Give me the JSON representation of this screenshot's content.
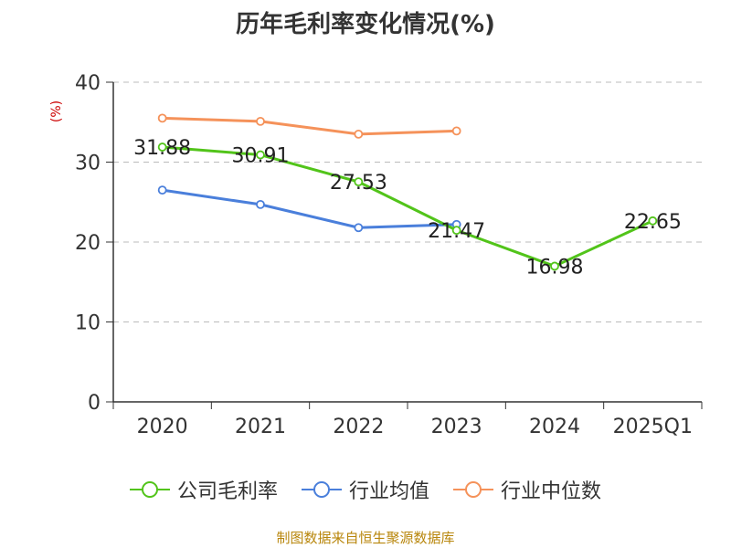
{
  "chart_data": {
    "type": "line",
    "title": "历年毛利率变化情况(%)",
    "ylabel": "(%)",
    "xlabel": "",
    "ylim": [
      0,
      40
    ],
    "yticks": [
      0,
      10,
      20,
      30,
      40
    ],
    "grid": true,
    "categories": [
      "2020",
      "2021",
      "2022",
      "2023",
      "2024",
      "2025Q1"
    ],
    "series": [
      {
        "name": "公司毛利率",
        "color": "#52c41a",
        "values": [
          31.88,
          30.91,
          27.53,
          21.47,
          16.98,
          22.65
        ],
        "labels": [
          "31.88",
          "30.91",
          "27.53",
          "21.47",
          "16.98",
          "22.65"
        ]
      },
      {
        "name": "行业均值",
        "color": "#4a7fdb",
        "values": [
          26.5,
          24.7,
          21.8,
          22.2,
          null,
          null
        ]
      },
      {
        "name": "行业中位数",
        "color": "#f5925a",
        "values": [
          35.5,
          35.1,
          33.5,
          33.9,
          null,
          null
        ]
      }
    ],
    "legend_position": "bottom",
    "source": "制图数据来自恒生聚源数据库"
  }
}
